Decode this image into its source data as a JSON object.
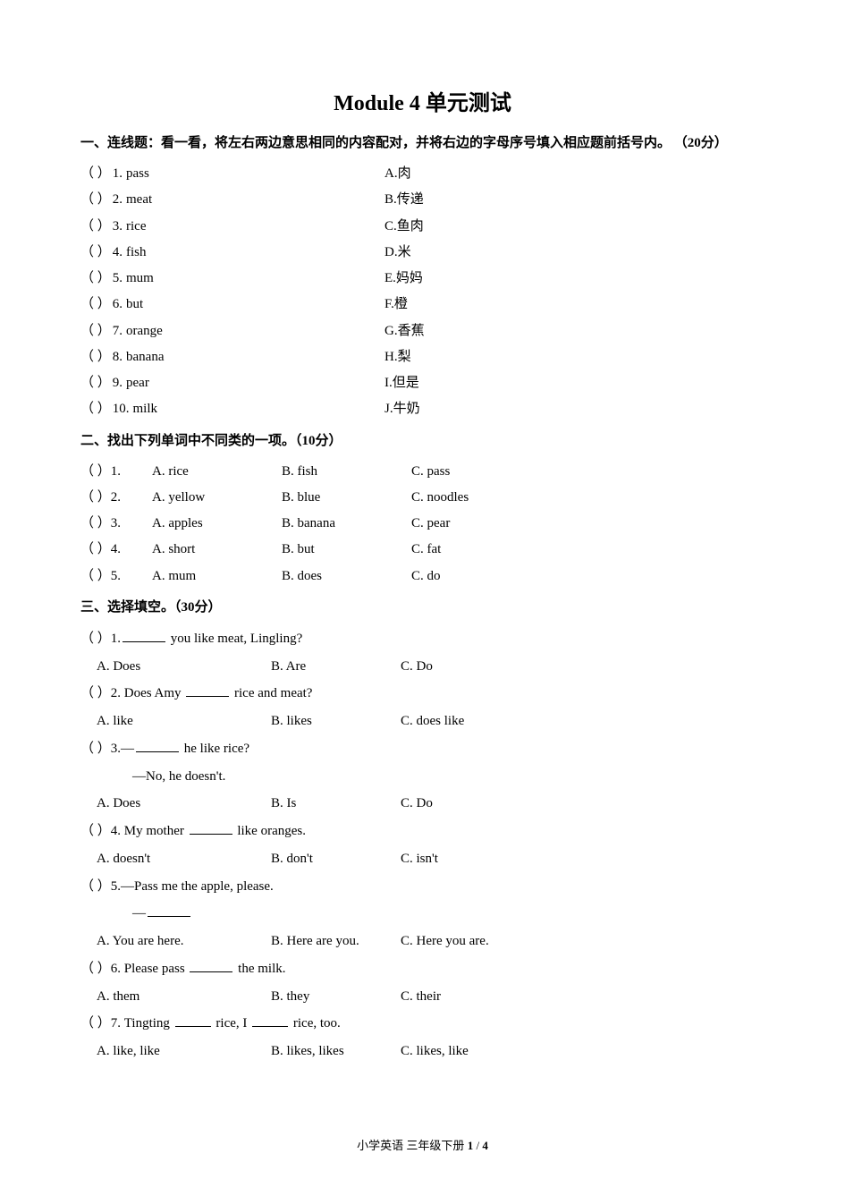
{
  "title": "Module 4  单元测试",
  "section1": {
    "header": "一、连线题：看一看，将左右两边意思相同的内容配对，并将右边的字母序号填入相应题前括号内。  （20分）",
    "items": [
      {
        "num": "1.",
        "word": "pass",
        "key": "A.",
        "meaning": "肉"
      },
      {
        "num": "2.",
        "word": "meat",
        "key": "B.",
        "meaning": "传递"
      },
      {
        "num": "3.",
        "word": "rice",
        "key": "C.",
        "meaning": "鱼肉"
      },
      {
        "num": "4.",
        "word": "fish",
        "key": "D.",
        "meaning": "米"
      },
      {
        "num": "5.",
        "word": "mum",
        "key": "E.",
        "meaning": "妈妈"
      },
      {
        "num": "6.",
        "word": "but",
        "key": "F.",
        "meaning": "橙"
      },
      {
        "num": "7.",
        "word": "orange",
        "key": "G.",
        "meaning": "香蕉"
      },
      {
        "num": "8.",
        "word": "banana",
        "key": "H.",
        "meaning": "梨"
      },
      {
        "num": "9.",
        "word": "pear",
        "key": "I.",
        "meaning": "但是"
      },
      {
        "num": "10.",
        "word": "milk",
        "key": "J.",
        "meaning": "牛奶"
      }
    ]
  },
  "section2": {
    "header": "二、找出下列单词中不同类的一项。（10分）",
    "items": [
      {
        "num": "1.",
        "a": "A. rice",
        "b": "B. fish",
        "c": "C. pass"
      },
      {
        "num": "2.",
        "a": "A. yellow",
        "b": "B. blue",
        "c": "C. noodles"
      },
      {
        "num": "3.",
        "a": "A. apples",
        "b": "B. banana",
        "c": "C. pear"
      },
      {
        "num": "4.",
        "a": "A. short",
        "b": "B. but",
        "c": "C. fat"
      },
      {
        "num": "5.",
        "a": "A. mum",
        "b": "B. does",
        "c": "C. do"
      }
    ]
  },
  "section3": {
    "header": "三、选择填空。（30分）",
    "q1": {
      "num": "1.",
      "tail": " you like meat, Lingling?",
      "a": "A. Does",
      "b": "B. Are",
      "c": "C. Do"
    },
    "q2": {
      "num": "2.",
      "pre": "Does Amy ",
      "tail": " rice and meat?",
      "a": "A. like",
      "b": "B. likes",
      "c": "C. does like"
    },
    "q3": {
      "num": "3.",
      "dash": "—",
      "tail": " he like rice?",
      "ans": "—No, he doesn't.",
      "a": "A. Does",
      "b": "B. Is",
      "c": "C. Do"
    },
    "q4": {
      "num": "4.",
      "pre": "My mother ",
      "tail": " like oranges.",
      "a": "A. doesn't",
      "b": "B. don't",
      "c": "C. isn't"
    },
    "q5": {
      "num": "5.",
      "dash": "—",
      "line1": "Pass me the apple, please.",
      "line2dash": "—",
      "a": "A. You are here.",
      "b": "B. Here are you.",
      "c": "C. Here you are."
    },
    "q6": {
      "num": "6.",
      "pre": "Please pass ",
      "tail": " the milk.",
      "a": "A. them",
      "b": "B. they",
      "c": "C. their"
    },
    "q7": {
      "num": "7.",
      "pre": "Tingting ",
      "mid": " rice, I ",
      "tail": " rice, too.",
      "a": "A. like, like",
      "b": "B. likes, likes",
      "c": "C. likes, like"
    }
  },
  "bracket": "（        ）",
  "footer": {
    "text": "小学英语 三年级下册 ",
    "page": "1",
    "sep": " / ",
    "total": "4"
  }
}
